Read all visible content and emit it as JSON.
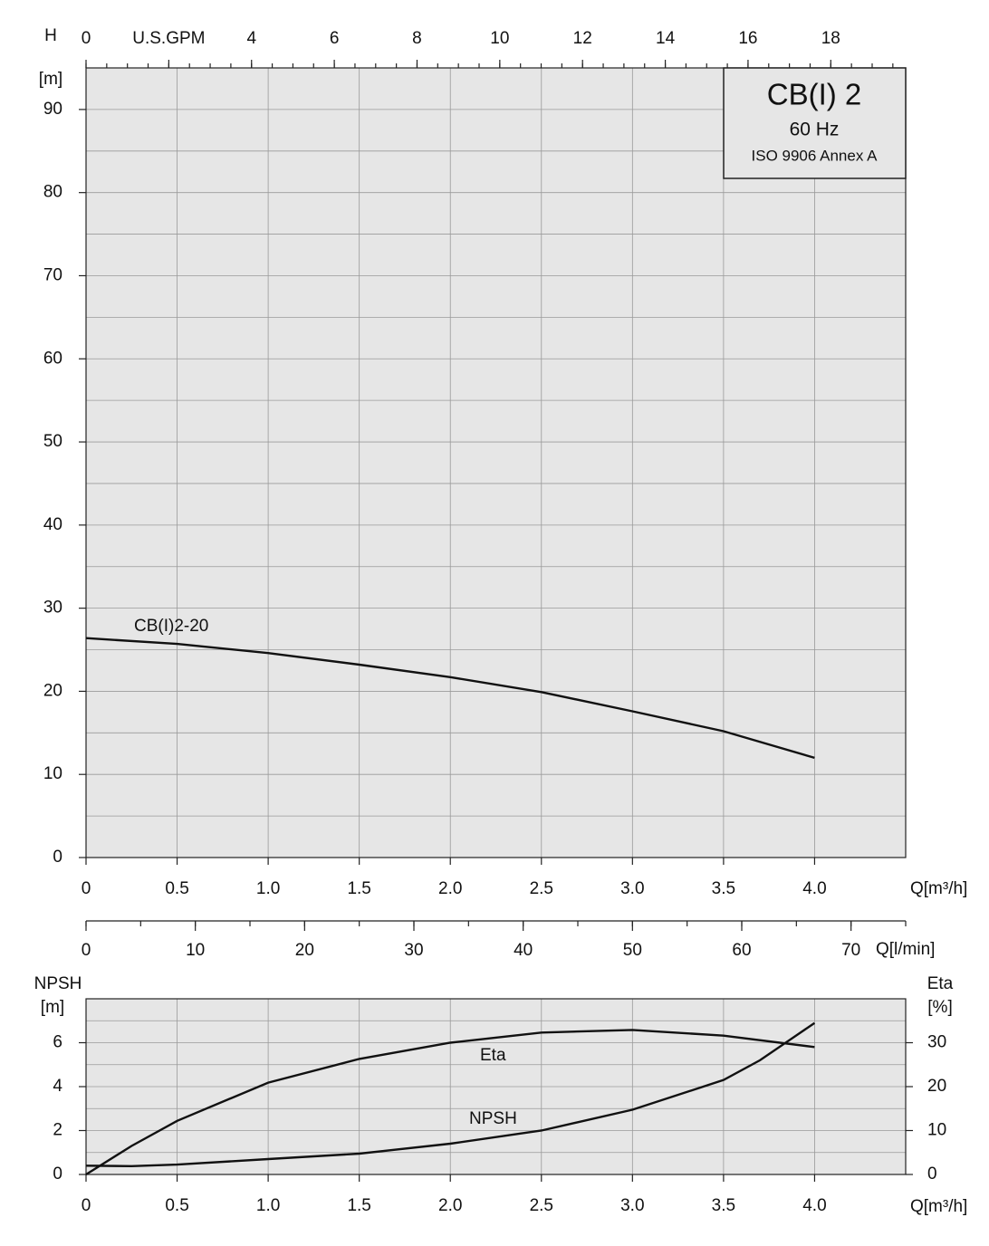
{
  "chart_data": [
    {
      "type": "line",
      "ylabel": "H",
      "yunit": "[m]",
      "xlabel": "Q[m³/h]",
      "title": "CB(I) 2",
      "subtitle": "60 Hz",
      "note": "ISO 9906 Annex A",
      "xlim": [
        0,
        4.5
      ],
      "ylim": [
        0,
        95
      ],
      "xticks": [
        0,
        0.5,
        {
          "value": 1,
          "label": "1.0"
        },
        1.5,
        {
          "value": 2,
          "label": "2.0"
        },
        2.5,
        {
          "value": 3,
          "label": "3.0"
        },
        3.5,
        {
          "value": 4,
          "label": "4.0"
        }
      ],
      "yticks": [
        0,
        10,
        20,
        30,
        40,
        50,
        60,
        70,
        80,
        90
      ],
      "yminor": 5,
      "grid": true,
      "x2lim": [
        0,
        19.81
      ],
      "x2ticks": [
        0,
        {
          "value": 2,
          "label": "U.S.GPM"
        },
        4,
        6,
        8,
        10,
        12,
        14,
        16,
        18
      ],
      "x2minor": 0.5,
      "x3label": "Q[l/min]",
      "x3lim": [
        0,
        75
      ],
      "x3ticks": [
        0,
        10,
        20,
        30,
        40,
        50,
        60,
        70
      ],
      "x3minor": 5,
      "series": [
        {
          "name": "CB(I)2-20",
          "color": "#111111",
          "x": [
            0,
            0.5,
            1,
            1.5,
            2,
            2.5,
            3,
            3.5,
            4
          ],
          "values": [
            26.4,
            25.7,
            24.6,
            23.2,
            21.7,
            19.9,
            17.6,
            15.2,
            12.0
          ]
        }
      ]
    },
    {
      "type": "line",
      "ylabel": "NPSH",
      "yunit": "[m]",
      "y2label": "Eta",
      "y2unit": "[%]",
      "xlabel": "Q[m³/h]",
      "xlim": [
        0,
        4.5
      ],
      "ylim": [
        0,
        8
      ],
      "y2lim": [
        0,
        40
      ],
      "xticks": [
        0,
        0.5,
        {
          "value": 1,
          "label": "1.0"
        },
        1.5,
        {
          "value": 2,
          "label": "2.0"
        },
        2.5,
        {
          "value": 3,
          "label": "3.0"
        },
        3.5,
        {
          "value": 4,
          "label": "4.0"
        }
      ],
      "yticks": [
        0,
        2,
        4,
        6
      ],
      "y2ticks": [
        0,
        10,
        20,
        30
      ],
      "yminor": 1,
      "grid": true,
      "series": [
        {
          "name": "Eta",
          "color": "#111111",
          "axis": "y2",
          "x": [
            0,
            0.25,
            0.5,
            1,
            1.5,
            2,
            2.5,
            3,
            3.5,
            4
          ],
          "values": [
            0,
            6.5,
            12.2,
            20.9,
            26.3,
            30,
            32.3,
            32.9,
            31.6,
            29
          ]
        },
        {
          "name": "NPSH",
          "color": "#111111",
          "x": [
            0,
            0.25,
            0.5,
            1,
            1.5,
            2,
            2.5,
            3,
            3.5,
            3.7,
            4
          ],
          "values": [
            0.4,
            0.38,
            0.45,
            0.7,
            0.95,
            1.4,
            2.0,
            2.95,
            4.3,
            5.2,
            6.9
          ]
        }
      ]
    }
  ]
}
